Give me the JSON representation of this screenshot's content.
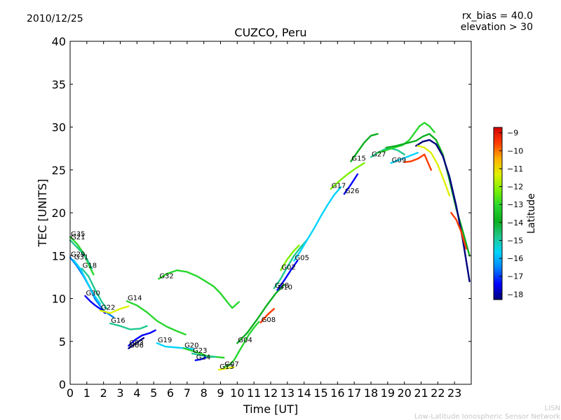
{
  "header": {
    "date": "2010/12/25",
    "rx_bias": "rx_bias = 40.0",
    "elevation": "elevation > 30"
  },
  "footer": {
    "line1": "LISN",
    "line2": "Low-Latitude Ionospheric Sensor Network"
  },
  "colorbar": {
    "label": "Latitude",
    "ticks": [
      -9,
      -10,
      -11,
      -12,
      -13,
      -14,
      -15,
      -16,
      -17,
      -18
    ],
    "range": [
      -18.3,
      -8.7
    ],
    "colors": [
      "#00007f",
      "#0000ff",
      "#0080ff",
      "#00d4ff",
      "#1fc88f",
      "#0cae1f",
      "#27d62d",
      "#7cf000",
      "#e0f000",
      "#ffb000",
      "#ff3c00",
      "#d40000"
    ]
  },
  "chart_data": {
    "type": "line",
    "title": "CUZCO, Peru",
    "xlabel": "Time [UT]",
    "ylabel": "TEC [UNITS]",
    "xlim": [
      0,
      24
    ],
    "ylim": [
      0,
      40
    ],
    "xticks": [
      0,
      1,
      2,
      3,
      4,
      5,
      6,
      7,
      8,
      9,
      10,
      11,
      12,
      13,
      14,
      15,
      16,
      17,
      18,
      19,
      20,
      21,
      22,
      23
    ],
    "yticks": [
      0,
      5,
      10,
      15,
      20,
      25,
      30,
      35,
      40
    ],
    "grid": false,
    "series": [
      {
        "name": "G35",
        "lat": -13.5,
        "x": [
          0.0,
          0.4,
          0.8,
          1.1,
          1.4
        ],
        "y": [
          17.2,
          16.4,
          15.3,
          14.0,
          12.8
        ]
      },
      {
        "name": "G21",
        "lat": -14.5,
        "x": [
          0.0,
          0.3,
          0.7,
          1.0,
          1.3
        ],
        "y": [
          16.8,
          16.2,
          15.4,
          14.6,
          13.5
        ]
      },
      {
        "name": "G29",
        "lat": -16.5,
        "x": [
          0.0,
          0.4,
          0.8,
          1.2,
          1.5,
          2.0,
          2.6
        ],
        "y": [
          14.8,
          13.8,
          12.6,
          11.2,
          9.9,
          8.6,
          7.8
        ]
      },
      {
        "name": "G31",
        "lat": -15.5,
        "x": [
          0.2,
          0.6,
          1.0,
          1.4,
          1.8
        ],
        "y": [
          14.5,
          13.5,
          12.0,
          10.5,
          9.4
        ]
      },
      {
        "name": "G18",
        "lat": -14.5,
        "x": [
          0.7,
          1.1,
          1.5,
          1.9,
          2.2
        ],
        "y": [
          13.5,
          12.6,
          11.0,
          9.6,
          8.8
        ]
      },
      {
        "name": "G30",
        "lat": -17.5,
        "x": [
          0.9,
          1.2,
          1.5,
          1.8,
          2.1
        ],
        "y": [
          10.3,
          9.7,
          9.2,
          8.8,
          8.3
        ]
      },
      {
        "name": "G22",
        "lat": -11.5,
        "x": [
          1.8,
          2.4,
          3.0,
          3.5
        ],
        "y": [
          8.6,
          8.3,
          8.8,
          9.1
        ]
      },
      {
        "name": "G16",
        "lat": -15.0,
        "x": [
          2.4,
          3.0,
          3.6,
          4.2,
          4.6
        ],
        "y": [
          7.1,
          6.8,
          6.4,
          6.5,
          6.8
        ]
      },
      {
        "name": "G03",
        "lat": -17.0,
        "x": [
          3.5,
          3.9,
          4.3,
          4.8,
          5.1
        ],
        "y": [
          4.5,
          5.2,
          5.7,
          6.0,
          6.3
        ]
      },
      {
        "name": "G06",
        "lat": -18.0,
        "x": [
          3.5,
          3.8,
          4.1,
          4.4
        ],
        "y": [
          4.2,
          4.6,
          5.0,
          5.4
        ]
      },
      {
        "name": "G14",
        "lat": -13.0,
        "x": [
          3.4,
          4.0,
          4.6,
          5.2,
          5.8,
          6.4,
          6.9
        ],
        "y": [
          9.7,
          9.2,
          8.4,
          7.4,
          6.7,
          6.2,
          5.8
        ]
      },
      {
        "name": "G19",
        "lat": -16.0,
        "x": [
          5.2,
          5.7,
          6.3,
          6.9,
          7.4
        ],
        "y": [
          4.8,
          4.4,
          4.3,
          4.2,
          4.1
        ]
      },
      {
        "name": "G32",
        "lat": -13.5,
        "x": [
          5.3,
          5.8,
          6.4,
          7.0,
          7.6,
          8.2,
          8.6,
          9.0,
          9.4,
          9.7,
          10.1
        ],
        "y": [
          12.3,
          12.9,
          13.3,
          13.1,
          12.6,
          11.9,
          11.4,
          10.6,
          9.6,
          8.9,
          9.6
        ]
      },
      {
        "name": "G20",
        "lat": -13.0,
        "x": [
          6.8,
          7.3,
          7.8,
          8.2,
          8.7,
          9.2
        ],
        "y": [
          4.2,
          3.9,
          3.6,
          3.3,
          3.2,
          3.1
        ]
      },
      {
        "name": "G23",
        "lat": -14.5,
        "x": [
          7.3,
          7.8,
          8.3,
          8.7
        ],
        "y": [
          3.6,
          3.4,
          3.2,
          3.2
        ]
      },
      {
        "name": "G24",
        "lat": -17.5,
        "x": [
          7.5,
          7.8,
          8.1
        ],
        "y": [
          2.8,
          2.9,
          3.1
        ]
      },
      {
        "name": "G13",
        "lat": -11.0,
        "x": [
          8.9,
          9.2,
          9.5,
          9.8
        ],
        "y": [
          1.7,
          1.8,
          1.9,
          2.0
        ]
      },
      {
        "name": "G07",
        "lat": -13.5,
        "x": [
          9.2,
          9.5,
          9.8,
          10.1,
          10.4,
          10.7,
          11.0,
          11.3
        ],
        "y": [
          2.0,
          2.2,
          2.8,
          3.8,
          4.8,
          5.8,
          6.6,
          7.3
        ]
      },
      {
        "name": "G04",
        "lat": -14.0,
        "x": [
          10.0,
          10.6,
          11.2,
          11.8,
          12.3,
          12.8
        ],
        "y": [
          4.8,
          6.0,
          7.6,
          9.3,
          10.6,
          11.6
        ]
      },
      {
        "name": "G08",
        "lat": -10.0,
        "x": [
          11.4,
          11.8,
          12.2
        ],
        "y": [
          7.2,
          8.1,
          8.8
        ]
      },
      {
        "name": "G10",
        "lat": -17.5,
        "x": [
          12.4,
          12.8,
          13.2,
          13.6
        ],
        "y": [
          11.0,
          12.1,
          13.3,
          14.4
        ]
      },
      {
        "name": "G28",
        "lat": -14.5,
        "x": [
          12.2,
          12.6,
          13.0,
          13.4,
          13.8,
          14.2
        ],
        "y": [
          11.2,
          12.3,
          13.7,
          15.0,
          16.0,
          16.9
        ]
      },
      {
        "name": "G02",
        "lat": -12.0,
        "x": [
          12.6,
          13.0,
          13.4,
          13.7
        ],
        "y": [
          13.3,
          14.6,
          15.6,
          16.2
        ]
      },
      {
        "name": "G05",
        "lat": -16.0,
        "x": [
          13.4,
          13.8,
          14.2,
          14.6,
          15.0,
          15.4,
          15.8,
          16.2
        ],
        "y": [
          14.4,
          15.6,
          16.9,
          18.2,
          19.6,
          20.9,
          22.1,
          23.0
        ]
      },
      {
        "name": "G26",
        "lat": -17.0,
        "x": [
          16.4,
          16.8,
          17.2
        ],
        "y": [
          22.2,
          23.3,
          24.5
        ]
      },
      {
        "name": "G17",
        "lat": -12.5,
        "x": [
          15.6,
          16.1,
          16.6,
          17.1,
          17.6
        ],
        "y": [
          22.8,
          23.7,
          24.5,
          25.2,
          25.8
        ]
      },
      {
        "name": "G15",
        "lat": -14.0,
        "x": [
          16.8,
          17.2,
          17.6,
          18.0,
          18.4
        ],
        "y": [
          26.0,
          27.1,
          28.2,
          29.0,
          29.2
        ]
      },
      {
        "name": "G27",
        "lat": -15.0,
        "x": [
          18.0,
          18.4,
          18.8,
          19.2,
          19.6,
          20.0
        ],
        "y": [
          26.5,
          27.0,
          27.4,
          27.5,
          27.3,
          26.8
        ]
      },
      {
        "name": "G09",
        "lat": -16.0,
        "x": [
          19.2,
          19.6,
          20.0,
          20.4,
          20.8
        ],
        "y": [
          25.8,
          26.1,
          26.4,
          26.7,
          27.0
        ]
      },
      {
        "name": "",
        "lat": -13.0,
        "x": [
          18.4,
          18.9,
          19.4,
          19.9,
          20.3,
          20.6,
          20.9,
          21.2,
          21.5,
          21.8
        ],
        "y": [
          27.0,
          27.3,
          27.6,
          27.9,
          28.5,
          29.3,
          30.1,
          30.5,
          30.1,
          29.4
        ]
      },
      {
        "name": "",
        "lat": -14.0,
        "x": [
          18.9,
          19.5,
          20.1,
          20.7,
          21.1,
          21.5,
          21.9,
          22.3,
          22.7,
          23.1,
          23.5,
          23.9
        ],
        "y": [
          27.6,
          27.8,
          28.1,
          28.4,
          28.9,
          29.2,
          28.5,
          26.8,
          23.8,
          20.5,
          17.8,
          15.0
        ]
      },
      {
        "name": "",
        "lat": -18.0,
        "x": [
          20.7,
          21.1,
          21.5,
          21.9,
          22.3,
          22.7,
          23.1,
          23.5,
          23.9
        ],
        "y": [
          27.8,
          28.3,
          28.5,
          28.0,
          26.6,
          24.2,
          20.8,
          16.8,
          12.0
        ]
      },
      {
        "name": "",
        "lat": -10.0,
        "x": [
          20.0,
          20.4,
          20.8,
          21.2,
          21.6
        ],
        "y": [
          25.9,
          26.0,
          26.3,
          26.8,
          25.0
        ]
      },
      {
        "name": "",
        "lat": -11.0,
        "x": [
          20.8,
          21.2,
          21.6,
          22.0,
          22.4,
          22.7
        ],
        "y": [
          27.8,
          27.6,
          27.0,
          25.6,
          23.6,
          22.0
        ]
      },
      {
        "name": "",
        "lat": -10.0,
        "x": [
          22.8,
          23.1,
          23.4,
          23.7
        ],
        "y": [
          20.0,
          19.2,
          17.8,
          15.8
        ]
      }
    ]
  }
}
